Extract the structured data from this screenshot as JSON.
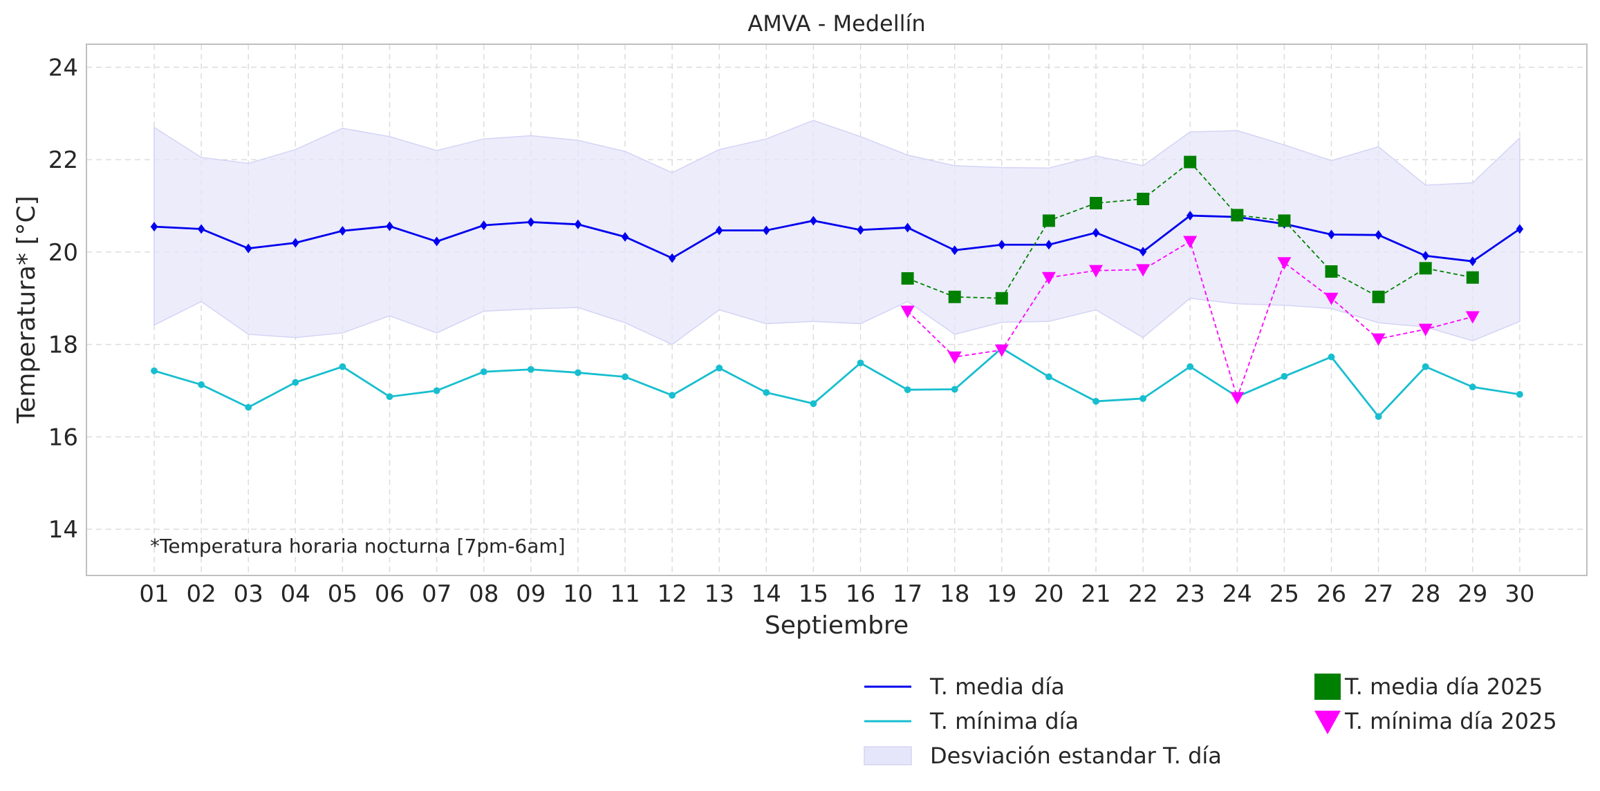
{
  "chart_data": {
    "type": "line",
    "title": "AMVA - Medellín",
    "xlabel": "Septiembre",
    "ylabel": "Temperatura* [°C]",
    "annotation": "*Temperatura horaria nocturna [7pm-6am]",
    "ylim": [
      13,
      24.5
    ],
    "yticks": [
      14,
      16,
      18,
      20,
      22,
      24
    ],
    "grid": true,
    "legend_position": "bottom-right",
    "categories": [
      "01",
      "02",
      "03",
      "04",
      "05",
      "06",
      "07",
      "08",
      "09",
      "10",
      "11",
      "12",
      "13",
      "14",
      "15",
      "16",
      "17",
      "18",
      "19",
      "20",
      "21",
      "22",
      "23",
      "24",
      "25",
      "26",
      "27",
      "28",
      "29",
      "30"
    ],
    "series": [
      {
        "name": "T. media día",
        "color": "#0000ee",
        "marker": "diamond",
        "style": "solid",
        "values": [
          20.55,
          20.5,
          20.08,
          20.2,
          20.46,
          20.56,
          20.23,
          20.58,
          20.65,
          20.6,
          20.33,
          19.87,
          20.47,
          20.47,
          20.68,
          20.48,
          20.53,
          20.04,
          20.16,
          20.16,
          20.42,
          20.01,
          20.79,
          20.76,
          20.61,
          20.38,
          20.37,
          19.92,
          19.8,
          20.5
        ]
      },
      {
        "name": "T. mínima día",
        "color": "#17becf",
        "marker": "circle",
        "style": "solid",
        "values": [
          17.43,
          17.13,
          16.64,
          17.18,
          17.52,
          16.87,
          17.0,
          17.41,
          17.46,
          17.39,
          17.3,
          16.9,
          17.49,
          16.96,
          16.72,
          17.6,
          17.02,
          17.03,
          17.92,
          17.3,
          16.77,
          16.83,
          17.52,
          16.87,
          17.31,
          17.73,
          16.44,
          17.52,
          17.08,
          16.92
        ]
      },
      {
        "name": "T. media día 2025",
        "color": "#008000",
        "marker": "square",
        "style": "dashed",
        "values": [
          null,
          null,
          null,
          null,
          null,
          null,
          null,
          null,
          null,
          null,
          null,
          null,
          null,
          null,
          null,
          null,
          19.43,
          19.03,
          19.0,
          20.68,
          21.06,
          21.15,
          21.95,
          20.8,
          20.68,
          19.58,
          19.03,
          19.65,
          19.45,
          null
        ]
      },
      {
        "name": "T. mínima día 2025",
        "color": "#ff00ff",
        "marker": "triangle-down",
        "style": "dashed",
        "values": [
          null,
          null,
          null,
          null,
          null,
          null,
          null,
          null,
          null,
          null,
          null,
          null,
          null,
          null,
          null,
          null,
          18.72,
          17.73,
          17.88,
          19.45,
          19.6,
          19.62,
          20.23,
          16.85,
          19.77,
          19.0,
          18.12,
          18.33,
          18.6,
          null
        ]
      }
    ],
    "band": {
      "name": "Desviación estandar T. día",
      "color": "#e6e6fa",
      "upper": [
        22.7,
        22.05,
        21.92,
        22.22,
        22.68,
        22.5,
        22.2,
        22.45,
        22.52,
        22.42,
        22.18,
        21.72,
        22.22,
        22.45,
        22.85,
        22.5,
        22.1,
        21.87,
        21.83,
        21.82,
        22.08,
        21.87,
        22.6,
        22.63,
        22.32,
        21.98,
        22.28,
        21.45,
        21.5,
        22.47
      ],
      "lower": [
        18.42,
        18.93,
        18.22,
        18.15,
        18.25,
        18.62,
        18.25,
        18.72,
        18.77,
        18.8,
        18.47,
        18.0,
        18.75,
        18.45,
        18.5,
        18.45,
        18.93,
        18.22,
        18.48,
        18.5,
        18.75,
        18.15,
        19.0,
        18.88,
        18.85,
        18.78,
        18.47,
        18.38,
        18.08,
        18.5
      ]
    }
  }
}
